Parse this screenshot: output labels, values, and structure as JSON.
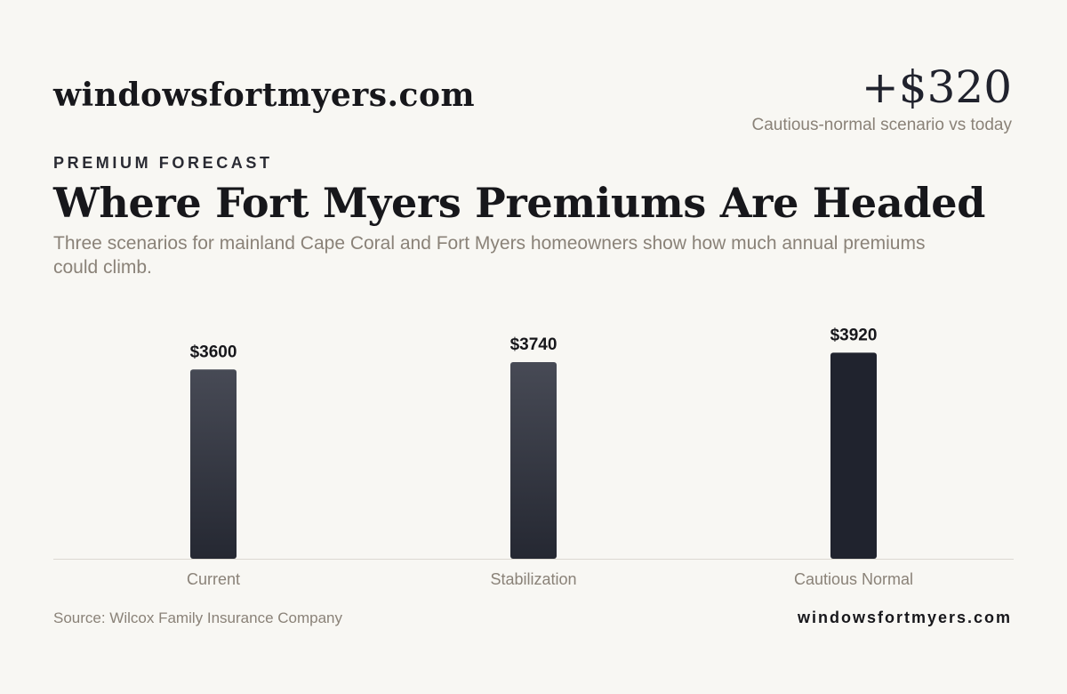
{
  "header": {
    "brand": "windowsfortmyers.com",
    "kpi_value": "+$320",
    "kpi_caption": "Cautious-normal scenario vs today"
  },
  "eyebrow": "PREMIUM FORECAST",
  "title": "Where Fort Myers Premiums Are Headed",
  "subtitle": "Three scenarios for mainland Cape Coral and Fort Myers homeowners show how much annual premiums could climb.",
  "footer": {
    "source": "Source: Wilcox Family Insurance Company",
    "brand": "windowsfortmyers.com"
  },
  "chart_data": {
    "type": "bar",
    "categories": [
      "Current",
      "Stabilization",
      "Cautious Normal"
    ],
    "values": [
      3600,
      3740,
      3920
    ],
    "value_labels": [
      "$3600",
      "$3740",
      "$3920"
    ],
    "title": "",
    "xlabel": "",
    "ylabel": "",
    "ylim": [
      0,
      4400
    ],
    "grid": false,
    "legend": "none",
    "colors": {
      "bar": "#3a3d48",
      "bar_dark": "#252832",
      "bar_highlight": "#20232e",
      "value_label": "#17171b",
      "category_label": "#8a8278",
      "axis": "#dcd9d2"
    }
  }
}
